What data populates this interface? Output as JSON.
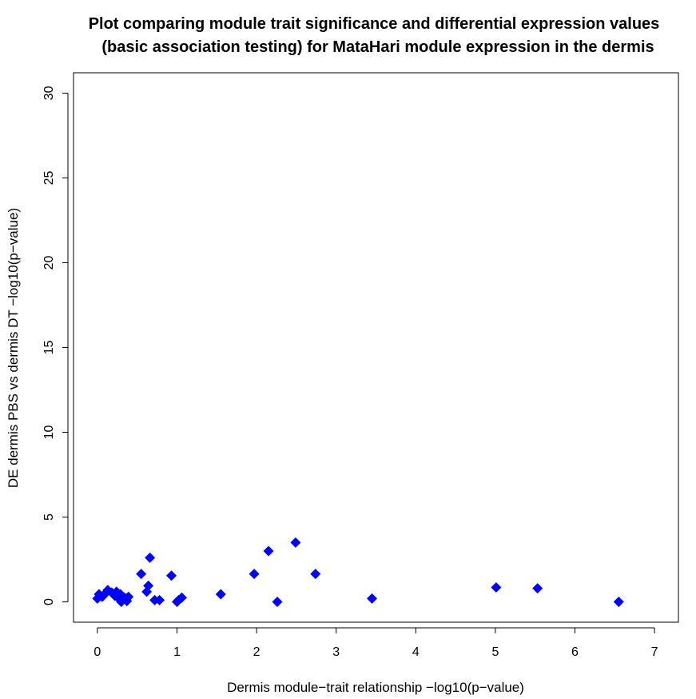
{
  "chart_data": {
    "type": "scatter",
    "title": [
      "Plot comparing module trait significance and differential expression values",
      "(basic association testing) for MataHari module expression in the dermis"
    ],
    "xlabel": "Dermis module−trait relationship −log10(p−value)",
    "ylabel": "DE dermis PBS vs dermis DT −log10(p−value)",
    "xlim": [
      -0.3,
      7.3
    ],
    "ylim": [
      -1.2,
      31.2
    ],
    "x_ticks": [
      0,
      1,
      2,
      3,
      4,
      5,
      6,
      7
    ],
    "y_ticks": [
      0,
      5,
      10,
      15,
      20,
      25,
      30
    ],
    "marker": "filled-diamond",
    "point_color": "#0000ff",
    "grid": false,
    "points": [
      {
        "x": 0.0,
        "y": 0.2
      },
      {
        "x": 0.02,
        "y": 0.45
      },
      {
        "x": 0.06,
        "y": 0.3
      },
      {
        "x": 0.1,
        "y": 0.5
      },
      {
        "x": 0.13,
        "y": 0.7
      },
      {
        "x": 0.18,
        "y": 0.55
      },
      {
        "x": 0.22,
        "y": 0.35
      },
      {
        "x": 0.24,
        "y": 0.6
      },
      {
        "x": 0.27,
        "y": 0.2
      },
      {
        "x": 0.29,
        "y": 0.45
      },
      {
        "x": 0.3,
        "y": 0.0
      },
      {
        "x": 0.34,
        "y": 0.25
      },
      {
        "x": 0.37,
        "y": 0.05
      },
      {
        "x": 0.39,
        "y": 0.3
      },
      {
        "x": 0.55,
        "y": 1.65
      },
      {
        "x": 0.62,
        "y": 0.6
      },
      {
        "x": 0.64,
        "y": 0.95
      },
      {
        "x": 0.66,
        "y": 2.6
      },
      {
        "x": 0.72,
        "y": 0.1
      },
      {
        "x": 0.78,
        "y": 0.1
      },
      {
        "x": 0.93,
        "y": 1.55
      },
      {
        "x": 1.0,
        "y": 0.0
      },
      {
        "x": 1.02,
        "y": 0.1
      },
      {
        "x": 1.06,
        "y": 0.25
      },
      {
        "x": 1.55,
        "y": 0.45
      },
      {
        "x": 1.97,
        "y": 1.65
      },
      {
        "x": 2.15,
        "y": 3.0
      },
      {
        "x": 2.26,
        "y": 0.0
      },
      {
        "x": 2.49,
        "y": 3.5
      },
      {
        "x": 2.74,
        "y": 1.65
      },
      {
        "x": 3.45,
        "y": 0.2
      },
      {
        "x": 5.01,
        "y": 0.85
      },
      {
        "x": 5.53,
        "y": 0.8
      },
      {
        "x": 6.55,
        "y": 0.0
      }
    ]
  }
}
